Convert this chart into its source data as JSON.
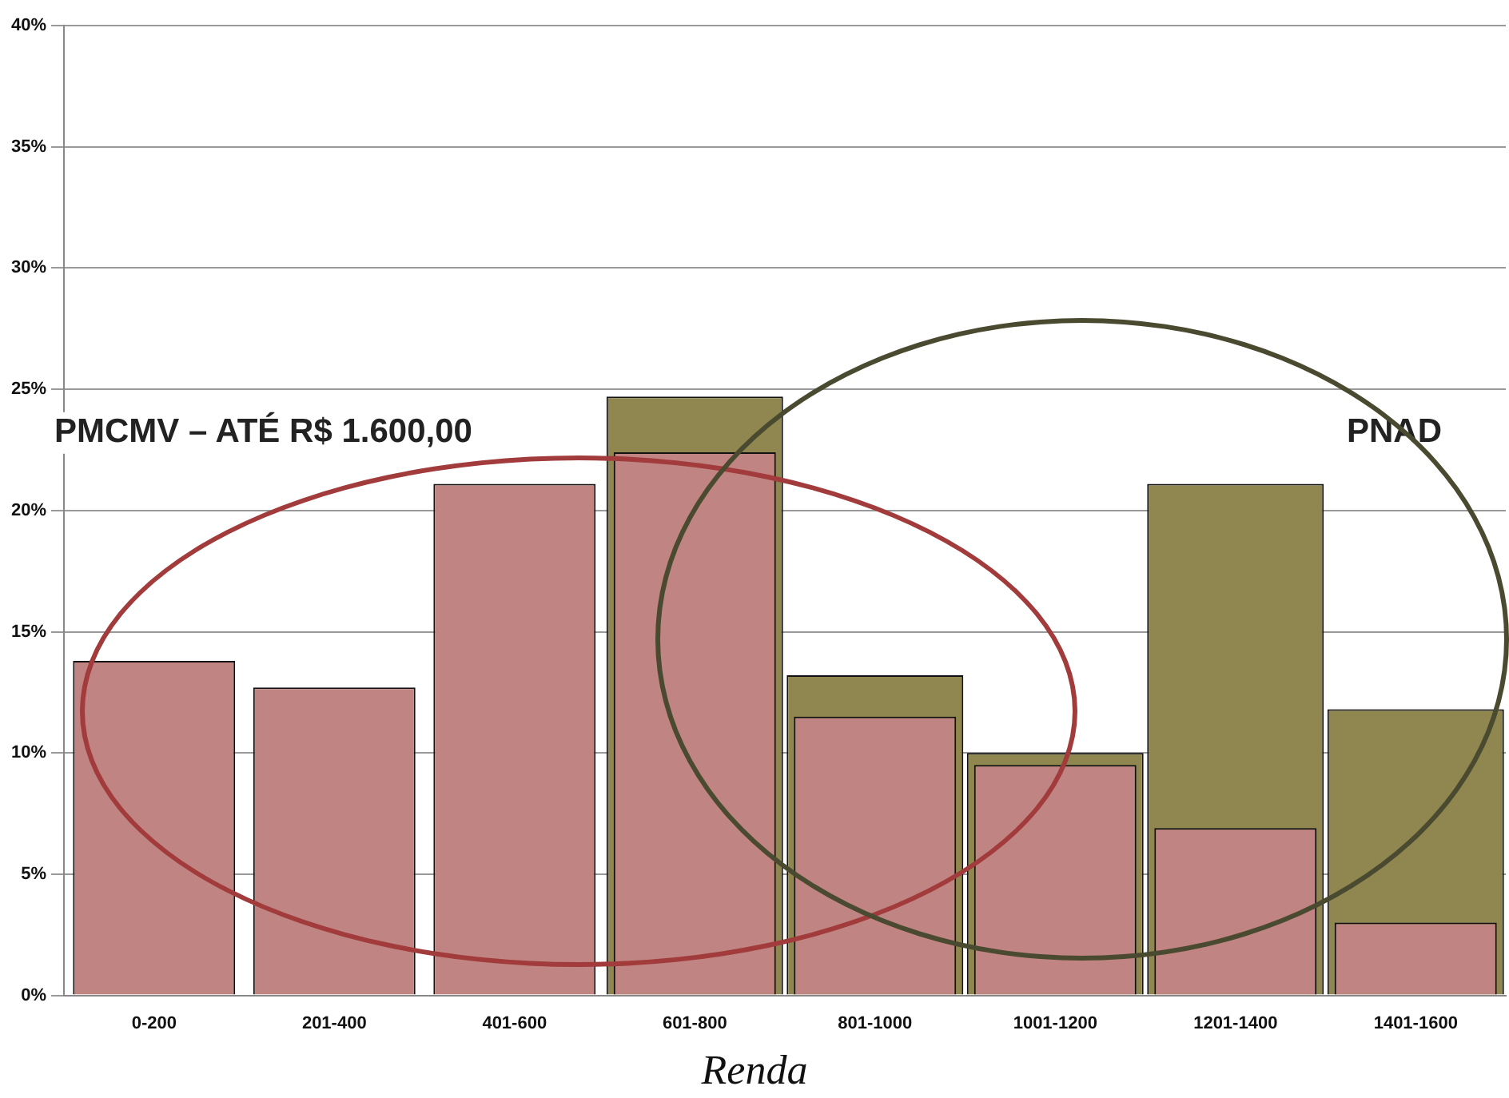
{
  "chart_data": {
    "type": "bar",
    "xlabel": "Renda",
    "categories": [
      "0-200",
      "201-400",
      "401-600",
      "601-800",
      "801-1000",
      "1001-1200",
      "1201-1400",
      "1401-1600"
    ],
    "series": [
      {
        "name": "PNAD",
        "color": "#8f8650",
        "values": [
          null,
          null,
          null,
          24.7,
          13.2,
          10.0,
          21.1,
          11.8
        ]
      },
      {
        "name": "PMCMV – ATÉ R$ 1.600,00",
        "color": "#c08482",
        "values": [
          13.8,
          12.7,
          21.1,
          22.4,
          11.5,
          9.5,
          6.9,
          3.0
        ]
      }
    ],
    "ylim": [
      0,
      40
    ],
    "yticks": [
      {
        "value": 0,
        "label": "0%"
      },
      {
        "value": 5,
        "label": "5%"
      },
      {
        "value": 10,
        "label": "10%"
      },
      {
        "value": 15,
        "label": "15%"
      },
      {
        "value": 20,
        "label": "20%"
      },
      {
        "value": 25,
        "label": "25%"
      },
      {
        "value": 30,
        "label": "30%"
      },
      {
        "value": 35,
        "label": "35%"
      },
      {
        "value": 40,
        "label": "40%"
      }
    ],
    "grid": "y",
    "legend": false
  }
}
